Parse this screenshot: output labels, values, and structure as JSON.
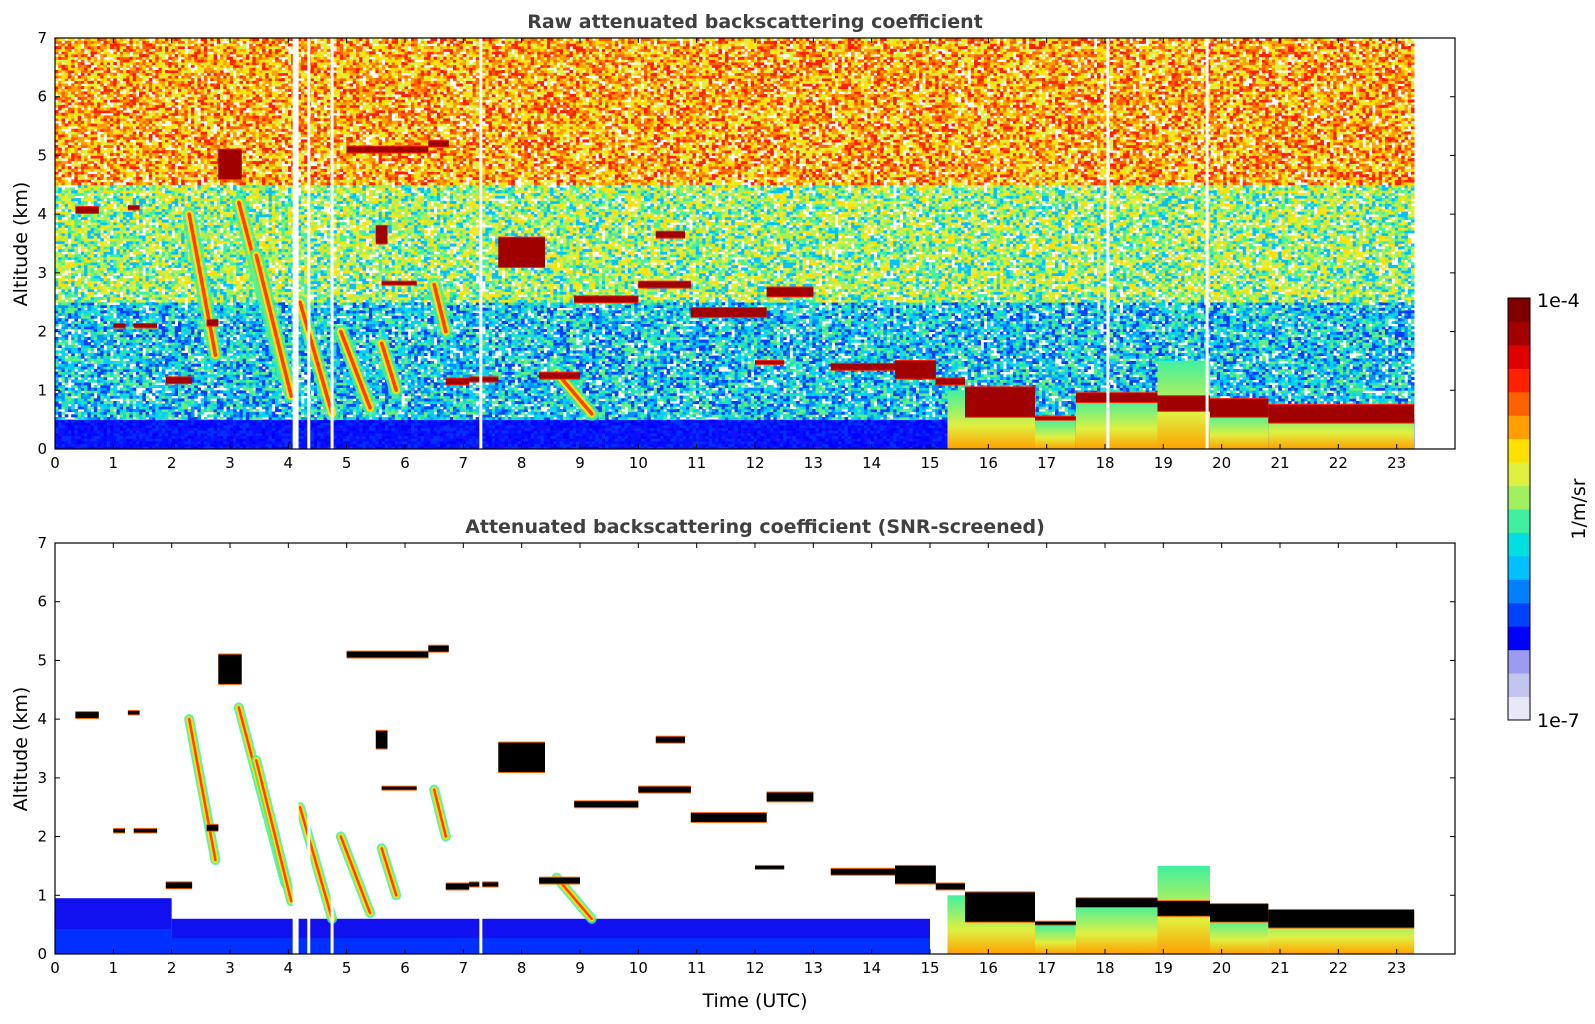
{
  "chart_data": [
    {
      "type": "heatmap",
      "title": "Raw attenuated backscattering coefficient",
      "xlabel": "",
      "ylabel": "Altitude (km)",
      "xlim": [
        0,
        24
      ],
      "ylim": [
        0,
        7
      ],
      "xticks": [
        "0",
        "1",
        "2",
        "3",
        "4",
        "5",
        "6",
        "7",
        "8",
        "9",
        "10",
        "11",
        "12",
        "13",
        "14",
        "15",
        "16",
        "17",
        "18",
        "19",
        "20",
        "21",
        "22",
        "23"
      ],
      "yticks": [
        "0",
        "1",
        "2",
        "3",
        "4",
        "5",
        "6",
        "7"
      ],
      "data_end_time": 23.3,
      "background_noise": [
        {
          "alt_range": [
            0,
            0.5
          ],
          "level": "high",
          "color_class": "blue"
        },
        {
          "alt_range": [
            0.5,
            2.5
          ],
          "level": "medium",
          "color_class": "blue-cyan"
        },
        {
          "alt_range": [
            2.5,
            4.5
          ],
          "level": "medium-high",
          "color_class": "cyan-yellow"
        },
        {
          "alt_range": [
            4.5,
            7
          ],
          "level": "high",
          "color_class": "yellow-red"
        }
      ],
      "gaps_time": [
        4.1,
        4.15,
        4.35,
        4.75,
        7.3,
        18.05,
        19.75
      ],
      "cloud_layers": [
        {
          "t": [
            0.35,
            0.75
          ],
          "alt": [
            4.02,
            4.12
          ]
        },
        {
          "t": [
            1.25,
            1.45
          ],
          "alt": [
            4.08,
            4.14
          ]
        },
        {
          "t": [
            1.0,
            1.2
          ],
          "alt": [
            2.07,
            2.13
          ]
        },
        {
          "t": [
            1.35,
            1.75
          ],
          "alt": [
            2.07,
            2.13
          ]
        },
        {
          "t": [
            1.9,
            2.35
          ],
          "alt": [
            1.12,
            1.22
          ]
        },
        {
          "t": [
            2.6,
            2.8
          ],
          "alt": [
            2.1,
            2.2
          ]
        },
        {
          "t": [
            2.8,
            3.2
          ],
          "alt": [
            4.6,
            5.1
          ]
        },
        {
          "t": [
            5.0,
            6.4
          ],
          "alt": [
            5.05,
            5.15
          ]
        },
        {
          "t": [
            6.4,
            6.75
          ],
          "alt": [
            5.15,
            5.25
          ]
        },
        {
          "t": [
            5.6,
            6.2
          ],
          "alt": [
            2.8,
            2.85
          ]
        },
        {
          "t": [
            5.5,
            5.7
          ],
          "alt": [
            3.5,
            3.8
          ]
        },
        {
          "t": [
            6.7,
            7.1
          ],
          "alt": [
            1.1,
            1.2
          ]
        },
        {
          "t": [
            7.1,
            7.6
          ],
          "alt": [
            1.15,
            1.22
          ]
        },
        {
          "t": [
            7.6,
            8.4
          ],
          "alt": [
            3.1,
            3.6
          ]
        },
        {
          "t": [
            8.3,
            9.0
          ],
          "alt": [
            1.2,
            1.3
          ]
        },
        {
          "t": [
            8.9,
            10.0
          ],
          "alt": [
            2.5,
            2.6
          ]
        },
        {
          "t": [
            10.0,
            10.9
          ],
          "alt": [
            2.75,
            2.85
          ]
        },
        {
          "t": [
            10.3,
            10.8
          ],
          "alt": [
            3.6,
            3.7
          ]
        },
        {
          "t": [
            10.9,
            12.2
          ],
          "alt": [
            2.25,
            2.4
          ]
        },
        {
          "t": [
            12.2,
            13.0
          ],
          "alt": [
            2.6,
            2.75
          ]
        },
        {
          "t": [
            12.0,
            12.5
          ],
          "alt": [
            1.45,
            1.5
          ]
        },
        {
          "t": [
            13.3,
            14.4
          ],
          "alt": [
            1.35,
            1.45
          ]
        },
        {
          "t": [
            14.4,
            15.1
          ],
          "alt": [
            1.2,
            1.5
          ]
        },
        {
          "t": [
            15.1,
            15.6
          ],
          "alt": [
            1.1,
            1.2
          ]
        },
        {
          "t": [
            15.6,
            16.8
          ],
          "alt": [
            0.55,
            1.05
          ]
        },
        {
          "t": [
            16.8,
            17.5
          ],
          "alt": [
            0.5,
            0.55
          ]
        },
        {
          "t": [
            17.5,
            18.9
          ],
          "alt": [
            0.8,
            0.95
          ]
        },
        {
          "t": [
            18.9,
            19.8
          ],
          "alt": [
            0.65,
            0.9
          ]
        },
        {
          "t": [
            19.8,
            20.8
          ],
          "alt": [
            0.55,
            0.85
          ]
        },
        {
          "t": [
            20.8,
            23.3
          ],
          "alt": [
            0.45,
            0.75
          ]
        }
      ],
      "precipitation_streaks": [
        {
          "t_top": 2.3,
          "alt_top": 4.0,
          "t_bottom": 2.75,
          "alt_bottom": 1.6
        },
        {
          "t_top": 3.15,
          "alt_top": 4.2,
          "t_bottom": 3.95,
          "alt_bottom": 1.2
        },
        {
          "t_top": 3.45,
          "alt_top": 3.3,
          "t_bottom": 4.05,
          "alt_bottom": 0.9
        },
        {
          "t_top": 4.2,
          "alt_top": 2.5,
          "t_bottom": 4.75,
          "alt_bottom": 0.6
        },
        {
          "t_top": 4.9,
          "alt_top": 2.0,
          "t_bottom": 5.4,
          "alt_bottom": 0.7
        },
        {
          "t_top": 5.6,
          "alt_top": 1.8,
          "t_bottom": 5.85,
          "alt_bottom": 1.0
        },
        {
          "t_top": 6.5,
          "alt_top": 2.8,
          "t_bottom": 6.7,
          "alt_bottom": 2.0
        },
        {
          "t_top": 8.6,
          "alt_top": 1.3,
          "t_bottom": 9.2,
          "alt_bottom": 0.6
        }
      ],
      "boundary_layer_aerosol": [
        {
          "t": [
            15.3,
            16.8
          ],
          "alt": [
            0,
            1.0
          ]
        },
        {
          "t": [
            16.8,
            17.5
          ],
          "alt": [
            0,
            0.5
          ]
        },
        {
          "t": [
            17.5,
            18.9
          ],
          "alt": [
            0,
            0.85
          ]
        },
        {
          "t": [
            18.9,
            19.8
          ],
          "alt": [
            0,
            1.5
          ]
        },
        {
          "t": [
            19.8,
            20.8
          ],
          "alt": [
            0,
            0.6
          ]
        },
        {
          "t": [
            20.8,
            23.3
          ],
          "alt": [
            0,
            0.7
          ]
        }
      ]
    },
    {
      "type": "heatmap",
      "title": "Attenuated backscattering coefficient (SNR-screened)",
      "xlabel": "Time (UTC)",
      "ylabel": "Altitude (km)",
      "xlim": [
        0,
        24
      ],
      "ylim": [
        0,
        7
      ],
      "xticks": [
        "0",
        "1",
        "2",
        "3",
        "4",
        "5",
        "6",
        "7",
        "8",
        "9",
        "10",
        "11",
        "12",
        "13",
        "14",
        "15",
        "16",
        "17",
        "18",
        "19",
        "20",
        "21",
        "22",
        "23"
      ],
      "yticks": [
        "0",
        "1",
        "2",
        "3",
        "4",
        "5",
        "6",
        "7"
      ],
      "data_end_time": 23.3,
      "screened_background": [
        {
          "t": [
            0,
            2.0
          ],
          "alt": [
            0,
            0.95
          ]
        },
        {
          "t": [
            2.0,
            15.0
          ],
          "alt": [
            0,
            0.6
          ]
        }
      ],
      "note_screened": "cloud layers plotted with black high-backscatter tops"
    }
  ],
  "colorbar": {
    "label": "1/m/sr",
    "max_label": "1e-4",
    "min_label": "1e-7",
    "colors": [
      "#e8e8f8",
      "#c4c4f0",
      "#9b9bf0",
      "#0000ff",
      "#0040ff",
      "#0080ff",
      "#00c0ff",
      "#00e0e0",
      "#40f0a0",
      "#a0f060",
      "#e0f040",
      "#ffe000",
      "#ffa000",
      "#ff6000",
      "#ff2000",
      "#e00000",
      "#a00000",
      "#800000"
    ]
  }
}
